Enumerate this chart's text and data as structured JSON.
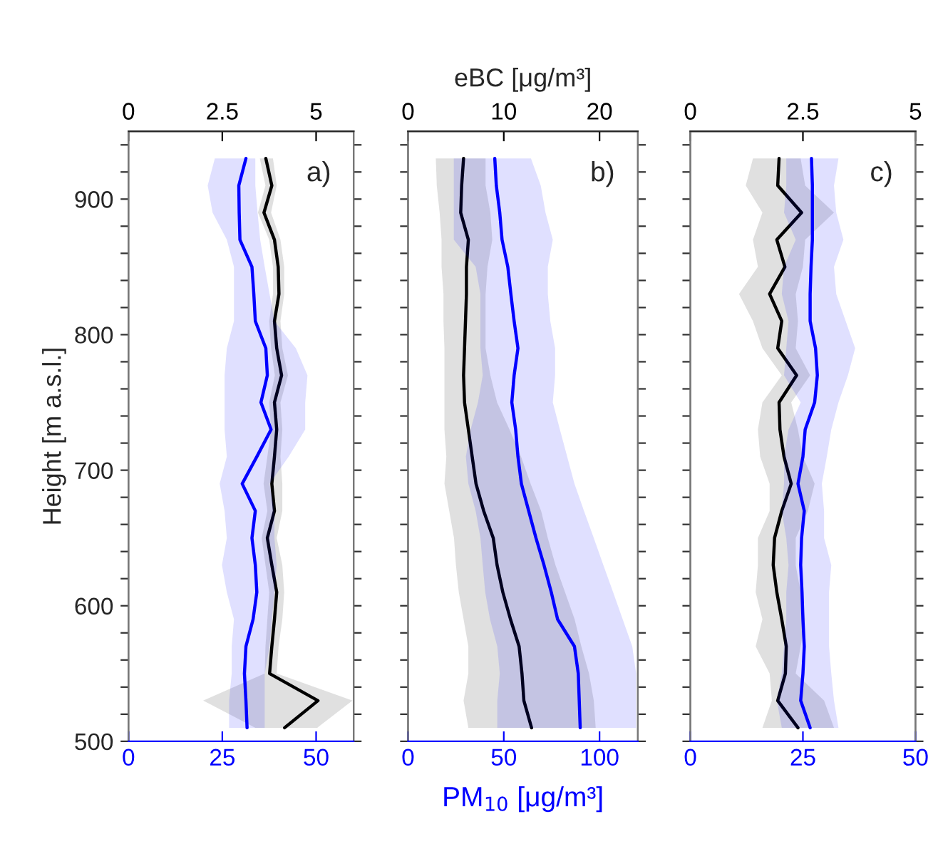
{
  "chart_data": [
    {
      "type": "line",
      "orientation": "horizontal",
      "ylabel": "Height [m a.s.l.]",
      "annotations": [
        "a)"
      ],
      "x": [
        510,
        530,
        550,
        570,
        590,
        610,
        630,
        650,
        670,
        690,
        710,
        730,
        750,
        770,
        790,
        810,
        830,
        850,
        870,
        890,
        910,
        930
      ],
      "ylim": [
        500,
        950
      ],
      "yticks": [
        500,
        {
          "value": 520,
          "label": null
        },
        {
          "value": 540,
          "label": null
        },
        {
          "value": 560,
          "label": null
        },
        {
          "value": 580,
          "label": null
        },
        600,
        {
          "value": 620,
          "label": null
        },
        {
          "value": 640,
          "label": null
        },
        {
          "value": 660,
          "label": null
        },
        {
          "value": 680,
          "label": null
        },
        700,
        {
          "value": 720,
          "label": null
        },
        {
          "value": 740,
          "label": null
        },
        {
          "value": 760,
          "label": null
        },
        {
          "value": 780,
          "label": null
        },
        800,
        {
          "value": 820,
          "label": null
        },
        {
          "value": 840,
          "label": null
        },
        {
          "value": 860,
          "label": null
        },
        {
          "value": 880,
          "label": null
        },
        900,
        {
          "value": 920,
          "label": null
        },
        {
          "value": 940,
          "label": null
        }
      ],
      "xlim": [
        0,
        60
      ],
      "xticks": [
        0,
        25,
        50
      ],
      "x2lim": [
        0,
        6
      ],
      "x2ticks": [
        0,
        2.5,
        5
      ],
      "series": [
        {
          "color": "#0000ff",
          "values": [
            31.6,
            31.3,
            30.9,
            31.3,
            33.2,
            34.2,
            33.8,
            32.9,
            33.8,
            30.3,
            34.2,
            38.0,
            35.3,
            37.0,
            36.6,
            33.8,
            33.4,
            32.9,
            29.7,
            29.5,
            29.4,
            31.3
          ],
          "lower": [
            26.8,
            26.8,
            27.5,
            27.5,
            28.1,
            26.2,
            24.9,
            26.2,
            25.6,
            24.3,
            26.2,
            25.6,
            25.6,
            25.6,
            26.2,
            28.1,
            28.1,
            28.1,
            26.2,
            22.4,
            21.1,
            23.0
          ],
          "upper": [
            36.3,
            36.3,
            36.3,
            37.6,
            38.2,
            38.9,
            39.5,
            38.9,
            38.9,
            37.6,
            42.7,
            47.1,
            47.1,
            47.7,
            44.6,
            38.9,
            37.6,
            36.3,
            35.1,
            34.4,
            33.8,
            33.8
          ]
        },
        {
          "color": "#000000",
          "axis": "x2",
          "values": [
            4.16,
            5.05,
            3.76,
            3.82,
            3.89,
            3.95,
            3.82,
            3.7,
            3.89,
            3.82,
            3.89,
            3.95,
            3.89,
            4.08,
            3.95,
            3.89,
            4.01,
            3.99,
            3.89,
            3.61,
            3.82,
            3.66
          ],
          "lower": [
            3.38,
            1.99,
            3.63,
            3.65,
            3.7,
            3.75,
            3.65,
            3.55,
            3.7,
            3.6,
            3.7,
            3.8,
            3.75,
            3.9,
            3.8,
            3.75,
            3.85,
            3.85,
            3.75,
            3.45,
            3.65,
            3.5
          ],
          "upper": [
            5.03,
            5.97,
            3.95,
            4.0,
            4.1,
            4.15,
            4.1,
            3.95,
            4.1,
            4.1,
            4.05,
            4.1,
            4.05,
            4.25,
            4.1,
            4.05,
            4.15,
            4.15,
            4.05,
            3.8,
            3.95,
            3.85
          ]
        }
      ]
    },
    {
      "type": "line",
      "orientation": "horizontal",
      "xlabel": "PM$_{10}$ [μg/m³]",
      "x2label": "eBC [μg/m³]",
      "annotations": [
        "b)"
      ],
      "tick_labels": "x",
      "x": [
        510,
        530,
        550,
        570,
        590,
        610,
        630,
        650,
        670,
        690,
        710,
        730,
        750,
        770,
        790,
        810,
        830,
        850,
        870,
        890,
        910,
        930
      ],
      "ylim": [
        500,
        950
      ],
      "xlim": [
        0,
        120
      ],
      "xticks": [
        0,
        50,
        100
      ],
      "x2lim": [
        0,
        24
      ],
      "x2ticks": [
        0,
        10,
        20
      ],
      "series": [
        {
          "color": "#0000ff",
          "values": [
            89.9,
            89.4,
            88.9,
            86.9,
            78.1,
            74.8,
            71.0,
            66.8,
            63.0,
            59.2,
            57.4,
            56.2,
            54.2,
            55.4,
            57.4,
            55.4,
            53.7,
            52.1,
            49.1,
            47.9,
            46.1,
            45.3
          ],
          "lower": [
            46.6,
            46.6,
            47.9,
            46.6,
            42.8,
            40.3,
            39.0,
            37.8,
            35.3,
            31.5,
            30.2,
            32.7,
            36.5,
            39.0,
            37.8,
            37.8,
            37.8,
            35.3,
            23.9,
            23.9,
            23.9,
            23.9
          ],
          "upper": [
            119.1,
            119.1,
            119.1,
            117.1,
            112.1,
            107.1,
            102.0,
            97.0,
            91.9,
            86.9,
            83.1,
            79.3,
            75.6,
            76.8,
            76.8,
            74.3,
            73.0,
            73.0,
            75.6,
            71.8,
            69.3,
            64.2
          ]
        },
        {
          "color": "#000000",
          "axis": "x2",
          "values": [
            12.9,
            12.1,
            11.9,
            11.6,
            10.7,
            9.9,
            9.3,
            8.9,
            7.9,
            7.1,
            6.7,
            6.3,
            5.9,
            5.8,
            5.9,
            6.0,
            6.1,
            6.1,
            6.3,
            5.5,
            5.6,
            5.8
          ],
          "lower": [
            6.3,
            5.8,
            6.3,
            6.3,
            5.8,
            5.3,
            5.0,
            4.8,
            4.3,
            3.8,
            4.0,
            3.8,
            3.8,
            3.8,
            3.8,
            3.7,
            3.7,
            3.5,
            3.5,
            3.3,
            3.0,
            2.9
          ],
          "upper": [
            19.6,
            19.4,
            18.9,
            18.1,
            17.4,
            16.4,
            15.4,
            14.6,
            13.9,
            12.8,
            11.8,
            10.6,
            9.3,
            8.6,
            8.1,
            8.1,
            8.1,
            8.3,
            8.8,
            8.6,
            8.1,
            8.1
          ]
        }
      ]
    },
    {
      "type": "line",
      "orientation": "horizontal",
      "annotations": [
        "c)"
      ],
      "tick_labels": "x",
      "x": [
        510,
        530,
        550,
        570,
        590,
        610,
        630,
        650,
        670,
        690,
        710,
        730,
        750,
        770,
        790,
        810,
        830,
        850,
        870,
        890,
        910,
        930
      ],
      "ylim": [
        500,
        950
      ],
      "xlim": [
        0,
        50
      ],
      "xticks": [
        0,
        25,
        50
      ],
      "x2lim": [
        0,
        5
      ],
      "x2ticks": [
        0,
        2.5,
        5
      ],
      "series": [
        {
          "color": "#0000ff",
          "values": [
            26.6,
            24.5,
            25.0,
            25.3,
            25.0,
            24.8,
            24.5,
            24.7,
            25.3,
            23.9,
            25.0,
            25.5,
            27.6,
            28.2,
            27.8,
            26.6,
            26.6,
            26.8,
            27.1,
            27.1,
            27.1,
            26.9
          ],
          "lower": [
            20.3,
            19.2,
            20.3,
            20.8,
            21.3,
            21.3,
            21.8,
            21.3,
            20.3,
            20.8,
            20.8,
            21.8,
            24.5,
            20.8,
            21.3,
            21.8,
            20.3,
            20.8,
            23.4,
            20.8,
            21.3,
            21.3
          ],
          "upper": [
            32.9,
            31.9,
            31.3,
            30.8,
            30.8,
            30.8,
            31.3,
            29.7,
            29.7,
            29.2,
            30.3,
            31.3,
            32.9,
            35.0,
            36.6,
            34.5,
            32.4,
            31.9,
            34.0,
            32.4,
            31.9,
            32.9
          ]
        },
        {
          "color": "#000000",
          "axis": "x2",
          "values": [
            2.39,
            1.94,
            2.11,
            2.13,
            2.03,
            1.92,
            1.84,
            1.87,
            2.03,
            2.24,
            2.08,
            1.99,
            1.97,
            2.36,
            1.94,
            2.03,
            1.76,
            2.1,
            1.92,
            2.47,
            1.94,
            1.97
          ],
          "lower": [
            1.6,
            1.81,
            1.76,
            1.45,
            1.6,
            1.45,
            1.5,
            1.5,
            1.76,
            1.76,
            1.55,
            1.5,
            1.6,
            2.03,
            1.6,
            1.39,
            1.08,
            1.5,
            1.39,
            1.6,
            1.23,
            1.39
          ],
          "upper": [
            3.19,
            2.97,
            2.34,
            2.45,
            2.55,
            2.45,
            2.34,
            2.34,
            2.61,
            2.76,
            2.5,
            2.39,
            2.24,
            2.66,
            2.34,
            2.39,
            2.34,
            2.5,
            2.55,
            3.19,
            2.55,
            2.45
          ]
        }
      ]
    }
  ]
}
